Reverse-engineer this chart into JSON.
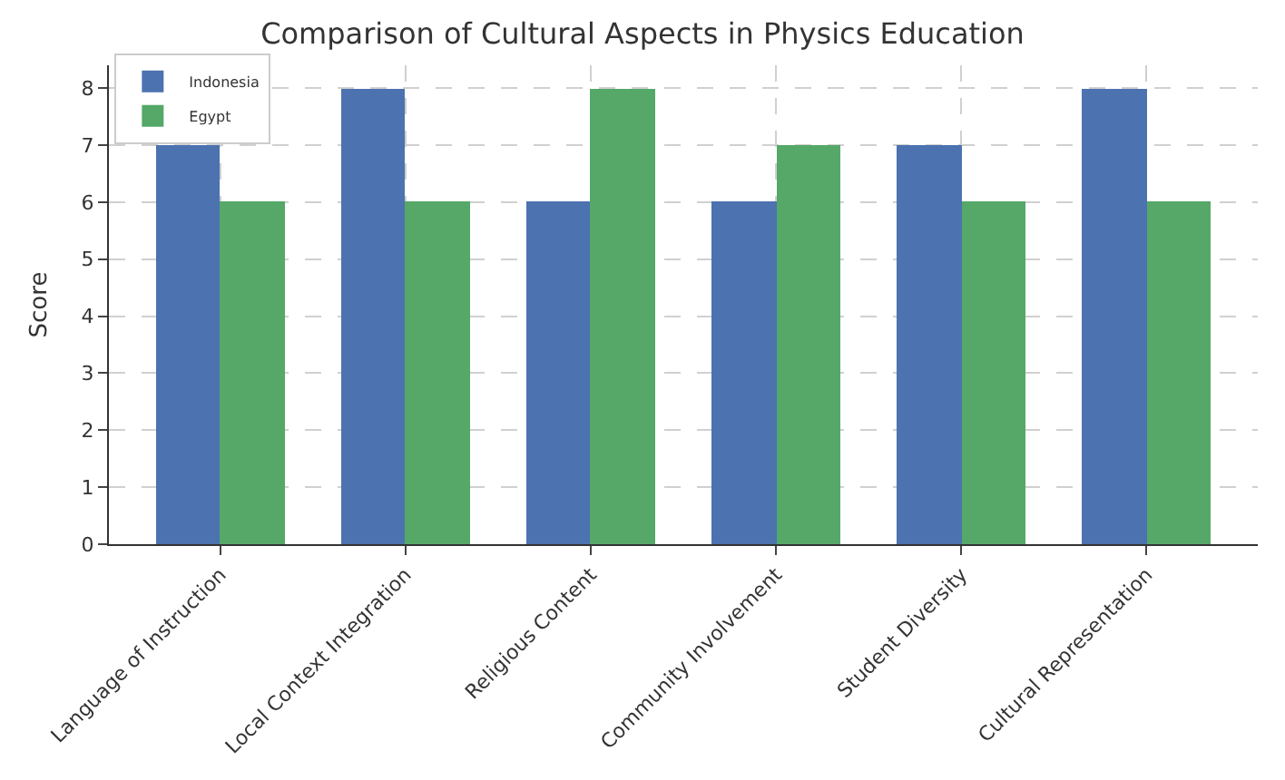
{
  "chart_data": {
    "type": "bar",
    "title": "Comparison of Cultural Aspects in Physics Education",
    "ylabel": "Score",
    "categories": [
      "Language of Instruction",
      "Local Context Integration",
      "Religious Content",
      "Community Involvement",
      "Student Diversity",
      "Cultural Representation"
    ],
    "series": [
      {
        "name": "Indonesia",
        "color": "#4c72b0",
        "values": [
          7,
          8,
          6,
          6,
          7,
          8
        ]
      },
      {
        "name": "Egypt",
        "color": "#55a868",
        "values": [
          6,
          6,
          8,
          7,
          6,
          6
        ]
      }
    ],
    "ylim": [
      0,
      8.4
    ],
    "yticks": [
      0,
      1,
      2,
      3,
      4,
      5,
      6,
      7,
      8
    ],
    "grid": true,
    "legend": "top left"
  }
}
